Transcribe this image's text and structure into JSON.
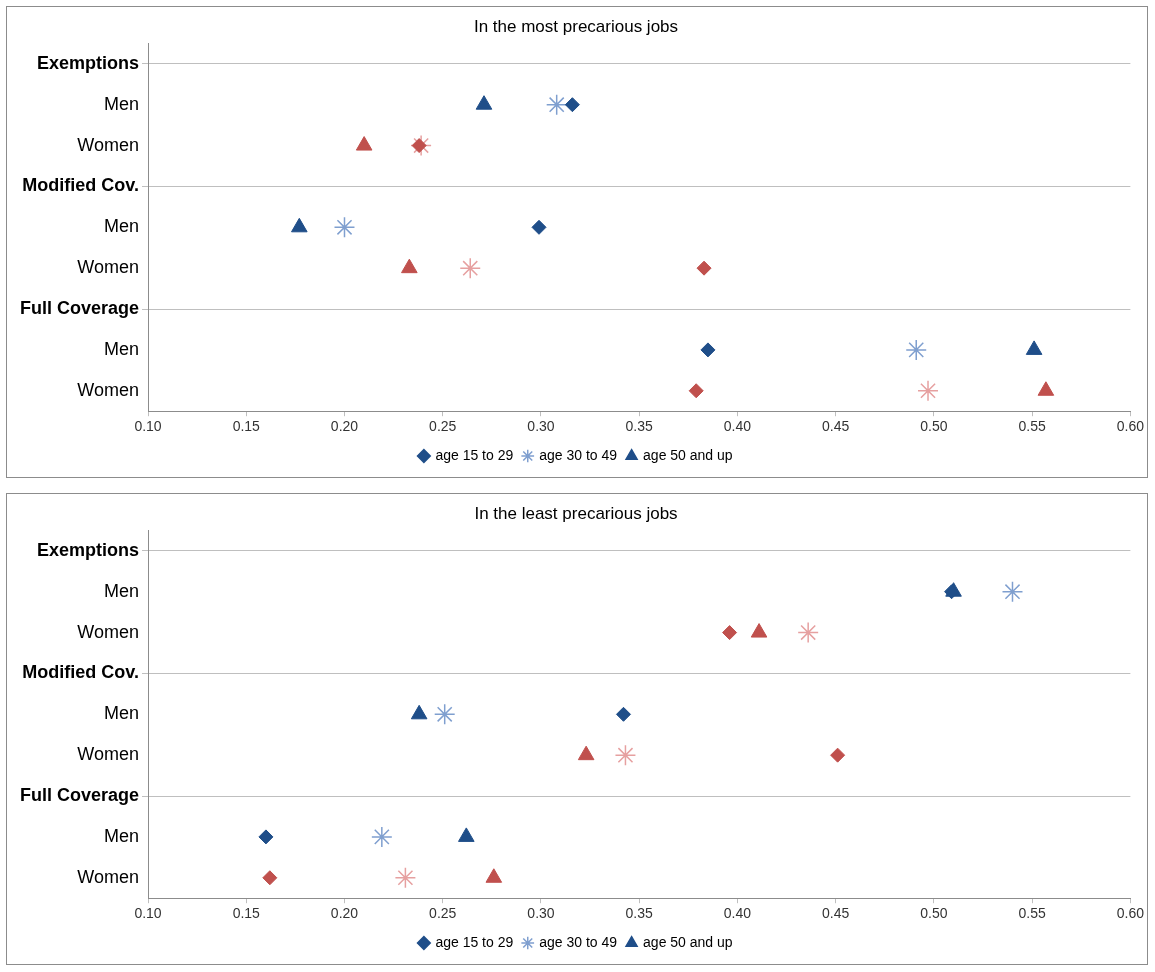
{
  "chart_data": [
    {
      "type": "scatter",
      "title": "In the most precarious jobs",
      "orientation": "horizontal",
      "categories": [
        "Exemptions",
        "Men",
        "Women",
        "Modified Cov.",
        "Men",
        "Women",
        "Full Coverage",
        "Men",
        "Women"
      ],
      "xlim": [
        0.1,
        0.6
      ],
      "xticks": [
        {
          "value": 0.1,
          "label": "0.10"
        },
        {
          "value": 0.15,
          "label": "0.15"
        },
        {
          "value": 0.2,
          "label": "0.20"
        },
        {
          "value": 0.25,
          "label": "0.25"
        },
        {
          "value": 0.3,
          "label": "0.30"
        },
        {
          "value": 0.35,
          "label": "0.35"
        },
        {
          "value": 0.4,
          "label": "0.40"
        },
        {
          "value": 0.45,
          "label": "0.45"
        },
        {
          "value": 0.5,
          "label": "0.50"
        },
        {
          "value": 0.55,
          "label": "0.55"
        },
        {
          "value": 0.6,
          "label": "0.60"
        }
      ],
      "grid": "y",
      "legend": "bottom",
      "series": [
        {
          "name": "age 15 to 29",
          "color": "#1f4e89",
          "marker": "diamond",
          "colors": [
            "#1f4e89",
            "#1f4e89",
            "#c0504d",
            "#1f4e89",
            "#1f4e89",
            "#c0504d",
            "#1f4e89",
            "#1f4e89",
            "#c0504d"
          ],
          "values": [
            null,
            0.316,
            0.238,
            null,
            0.299,
            0.383,
            null,
            0.385,
            0.379
          ]
        },
        {
          "name": "age 30 to 49",
          "color": "#7f9fcf",
          "marker": "cross",
          "colors": [
            "#7f9fcf",
            "#7f9fcf",
            "#e6a0a0",
            "#7f9fcf",
            "#7f9fcf",
            "#e6a0a0",
            "#7f9fcf",
            "#7f9fcf",
            "#e6a0a0"
          ],
          "values": [
            null,
            0.308,
            0.239,
            null,
            0.2,
            0.264,
            null,
            0.491,
            0.497
          ]
        },
        {
          "name": "age 50 and up",
          "color": "#1f4e89",
          "marker": "triangle",
          "colors": [
            "#1f4e89",
            "#1f4e89",
            "#c0504d",
            "#1f4e89",
            "#1f4e89",
            "#c0504d",
            "#1f4e89",
            "#1f4e89",
            "#c0504d"
          ],
          "values": [
            null,
            0.271,
            0.21,
            null,
            0.177,
            0.233,
            null,
            0.551,
            0.557
          ]
        }
      ]
    },
    {
      "type": "scatter",
      "title": "In the least precarious jobs",
      "orientation": "horizontal",
      "categories": [
        "Exemptions",
        "Men",
        "Women",
        "Modified Cov.",
        "Men",
        "Women",
        "Full Coverage",
        "Men",
        "Women"
      ],
      "xlim": [
        0.1,
        0.6
      ],
      "xticks": [
        {
          "value": 0.1,
          "label": "0.10"
        },
        {
          "value": 0.15,
          "label": "0.15"
        },
        {
          "value": 0.2,
          "label": "0.20"
        },
        {
          "value": 0.25,
          "label": "0.25"
        },
        {
          "value": 0.3,
          "label": "0.30"
        },
        {
          "value": 0.35,
          "label": "0.35"
        },
        {
          "value": 0.4,
          "label": "0.40"
        },
        {
          "value": 0.45,
          "label": "0.45"
        },
        {
          "value": 0.5,
          "label": "0.50"
        },
        {
          "value": 0.55,
          "label": "0.55"
        },
        {
          "value": 0.6,
          "label": "0.60"
        }
      ],
      "grid": "y",
      "legend": "bottom",
      "series": [
        {
          "name": "age 15 to 29",
          "color": "#1f4e89",
          "marker": "diamond",
          "colors": [
            "#1f4e89",
            "#1f4e89",
            "#c0504d",
            "#1f4e89",
            "#1f4e89",
            "#c0504d",
            "#1f4e89",
            "#1f4e89",
            "#c0504d"
          ],
          "values": [
            null,
            0.509,
            0.396,
            null,
            0.342,
            0.451,
            null,
            0.16,
            0.162
          ]
        },
        {
          "name": "age 30 to 49",
          "color": "#7f9fcf",
          "marker": "cross",
          "colors": [
            "#7f9fcf",
            "#7f9fcf",
            "#e6a0a0",
            "#7f9fcf",
            "#7f9fcf",
            "#e6a0a0",
            "#7f9fcf",
            "#7f9fcf",
            "#e6a0a0"
          ],
          "values": [
            null,
            0.54,
            0.436,
            null,
            0.251,
            0.343,
            null,
            0.219,
            0.231
          ]
        },
        {
          "name": "age 50 and up",
          "color": "#1f4e89",
          "marker": "triangle",
          "colors": [
            "#1f4e89",
            "#1f4e89",
            "#c0504d",
            "#1f4e89",
            "#1f4e89",
            "#c0504d",
            "#1f4e89",
            "#1f4e89",
            "#c0504d"
          ],
          "values": [
            null,
            0.51,
            0.411,
            null,
            0.238,
            0.323,
            null,
            0.262,
            0.276
          ]
        }
      ]
    }
  ]
}
